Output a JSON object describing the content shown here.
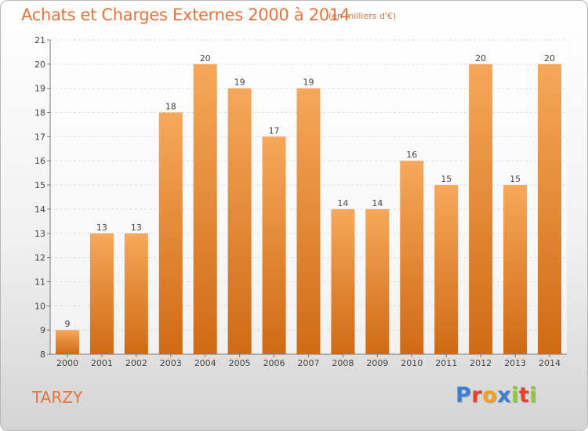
{
  "title": "Achats et Charges Externes 2000 à 2014",
  "unit_label": "(en milliers d'€)",
  "place_label": "TARZY",
  "logo": {
    "text": "Proxiti",
    "letters": [
      {
        "char": "P",
        "color": "#3a7fd0"
      },
      {
        "char": "r",
        "color": "#e8412c"
      },
      {
        "char": "o",
        "color": "#f2a21a"
      },
      {
        "char": "x",
        "color": "#3a7fd0"
      },
      {
        "char": "i",
        "color": "#8cc63f"
      },
      {
        "char": "t",
        "color": "#e8412c"
      },
      {
        "char": "i",
        "color": "#8cc63f"
      }
    ]
  },
  "colors": {
    "bar_top": "#f6a85a",
    "bar_bottom": "#d06a14",
    "title": "#e8743b",
    "grid": "#dddddd"
  },
  "chart_data": {
    "type": "bar",
    "title": "Achats et Charges Externes 2000 à 2014",
    "xlabel": "",
    "ylabel": "",
    "categories": [
      "2000",
      "2001",
      "2002",
      "2003",
      "2004",
      "2005",
      "2006",
      "2007",
      "2008",
      "2009",
      "2010",
      "2011",
      "2012",
      "2013",
      "2014"
    ],
    "values": [
      9,
      13,
      13,
      18,
      20,
      19,
      17,
      19,
      14,
      14,
      16,
      15,
      20,
      15,
      20
    ],
    "ylim": [
      8,
      21
    ],
    "yticks": [
      8,
      9,
      10,
      11,
      12,
      13,
      14,
      15,
      16,
      17,
      18,
      19,
      20,
      21
    ],
    "grid": "horizontal dashed",
    "data_labels": true
  }
}
